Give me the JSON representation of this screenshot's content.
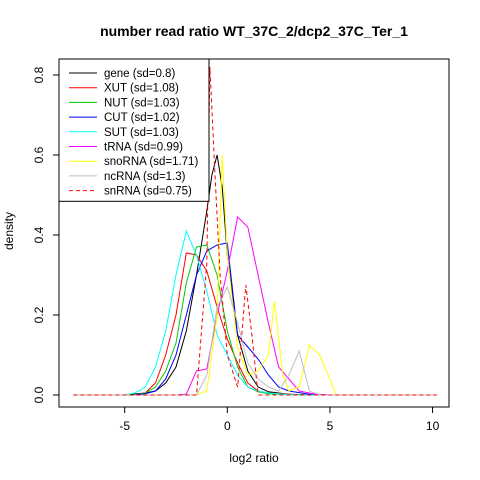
{
  "chart_data": {
    "type": "line",
    "title": "number read ratio WT_37C_2/dcp2_37C_Ter_1",
    "xlabel": "log2 ratio",
    "ylabel": "density",
    "xlim": [
      -8.2,
      10.8
    ],
    "ylim": [
      -0.03,
      0.84
    ],
    "xticks": [
      -5,
      0,
      5,
      10
    ],
    "yticks": [
      0.0,
      0.2,
      0.4,
      0.6,
      0.8
    ],
    "xtick_labels": [
      "-5",
      "0",
      "5",
      "10"
    ],
    "ytick_labels": [
      "0.0",
      "0.2",
      "0.4",
      "0.6",
      "0.8"
    ],
    "legend_position": "top-left",
    "series": [
      {
        "name": "gene (sd=0.8)",
        "color": "#000000",
        "dash": false,
        "x": [
          -7.5,
          -5,
          -4,
          -3.5,
          -3,
          -2.5,
          -2,
          -1.5,
          -1,
          -0.75,
          -0.5,
          -0.25,
          0,
          0.5,
          1,
          1.5,
          2,
          3,
          4,
          5,
          10.2
        ],
        "y": [
          0,
          0,
          0.005,
          0.01,
          0.03,
          0.07,
          0.16,
          0.3,
          0.46,
          0.55,
          0.6,
          0.52,
          0.35,
          0.15,
          0.06,
          0.02,
          0.008,
          0.002,
          0,
          0,
          0
        ]
      },
      {
        "name": "XUT (sd=1.08)",
        "color": "#ff0000",
        "dash": false,
        "x": [
          -7.5,
          -4.5,
          -4,
          -3.5,
          -3,
          -2.5,
          -2,
          -1.5,
          -1,
          -0.5,
          0,
          0.5,
          1,
          1.5,
          2,
          3,
          4,
          5,
          10.2
        ],
        "y": [
          0,
          0,
          0.005,
          0.03,
          0.1,
          0.2,
          0.355,
          0.35,
          0.31,
          0.22,
          0.14,
          0.08,
          0.03,
          0.01,
          0.005,
          0.002,
          0,
          0,
          0
        ]
      },
      {
        "name": "NUT (sd=1.03)",
        "color": "#00cc00",
        "dash": false,
        "x": [
          -7.5,
          -4.5,
          -4,
          -3.5,
          -3,
          -2.5,
          -2,
          -1.5,
          -1,
          -0.5,
          0,
          0.5,
          1,
          1.5,
          2,
          3,
          4,
          5,
          10.2
        ],
        "y": [
          0,
          0,
          0.005,
          0.02,
          0.06,
          0.13,
          0.28,
          0.37,
          0.375,
          0.3,
          0.16,
          0.07,
          0.02,
          0.008,
          0.003,
          0.001,
          0,
          0,
          0
        ]
      },
      {
        "name": "CUT (sd=1.02)",
        "color": "#0000ff",
        "dash": false,
        "x": [
          -7.5,
          -4.5,
          -4,
          -3.5,
          -3,
          -2.5,
          -2,
          -1.5,
          -1,
          -0.5,
          0,
          0.5,
          1,
          1.5,
          2,
          2.5,
          3,
          4,
          5,
          10.2
        ],
        "y": [
          0,
          0,
          0.003,
          0.01,
          0.04,
          0.1,
          0.2,
          0.3,
          0.36,
          0.375,
          0.38,
          0.15,
          0.12,
          0.09,
          0.05,
          0.02,
          0.01,
          0.002,
          0,
          0
        ]
      },
      {
        "name": "SUT (sd=1.03)",
        "color": "#00ffff",
        "dash": false,
        "x": [
          -7.5,
          -5,
          -4.5,
          -4,
          -3.5,
          -3,
          -2.5,
          -2,
          -1.5,
          -1,
          -0.5,
          0,
          0.5,
          1,
          1.5,
          2,
          3,
          4,
          5,
          10.2
        ],
        "y": [
          0,
          0,
          0.005,
          0.02,
          0.07,
          0.16,
          0.3,
          0.41,
          0.35,
          0.26,
          0.15,
          0.1,
          0.05,
          0.02,
          0.01,
          0.005,
          0.001,
          0,
          0,
          0
        ]
      },
      {
        "name": "tRNA (sd=0.99)",
        "color": "#ff00ff",
        "dash": false,
        "x": [
          -7.5,
          -2.5,
          -2,
          -1.5,
          -1,
          -0.5,
          0,
          0.5,
          1,
          1.5,
          2,
          2.5,
          3,
          3.5,
          4,
          4.5,
          5,
          10.2
        ],
        "y": [
          0,
          0,
          0.002,
          0.06,
          0.065,
          0.2,
          0.31,
          0.445,
          0.42,
          0.3,
          0.18,
          0.07,
          0.04,
          0.01,
          0.005,
          0.001,
          0,
          0
        ]
      },
      {
        "name": "snoRNA (sd=1.71)",
        "color": "#ffff00",
        "dash": false,
        "x": [
          -7.5,
          -1.5,
          -1,
          -0.5,
          -0.25,
          0,
          0.5,
          1,
          1.5,
          2,
          2.3,
          2.7,
          3,
          3.5,
          4,
          4.5,
          5,
          5.3,
          10.2
        ],
        "y": [
          0,
          0,
          0.01,
          0.2,
          0.6,
          0.35,
          0.12,
          0.05,
          0.06,
          0.1,
          0.235,
          0.05,
          0.01,
          0.02,
          0.125,
          0.1,
          0.04,
          0,
          0
        ]
      },
      {
        "name": "ncRNA (sd=1.3)",
        "color": "#bebebe",
        "dash": false,
        "x": [
          -7.5,
          -1.5,
          -1,
          -0.5,
          0,
          0.5,
          1,
          1.5,
          2,
          2.5,
          3,
          3.5,
          4,
          4.5,
          10.2
        ],
        "y": [
          0,
          0,
          0.05,
          0.22,
          0.27,
          0.18,
          0.08,
          0.04,
          0.02,
          0.01,
          0.05,
          0.11,
          0.01,
          0,
          0
        ]
      },
      {
        "name": "snRNA (sd=0.75)",
        "color": "#ff0000",
        "dash": true,
        "x": [
          -7.5,
          -1.5,
          -1,
          -0.85,
          -0.6,
          -0.35,
          0,
          0.5,
          0.9,
          1.2,
          1.5,
          2,
          10.2
        ],
        "y": [
          0,
          0,
          0.33,
          0.82,
          0.55,
          0.3,
          0.1,
          0.02,
          0.275,
          0.15,
          0,
          0,
          0
        ]
      }
    ]
  }
}
